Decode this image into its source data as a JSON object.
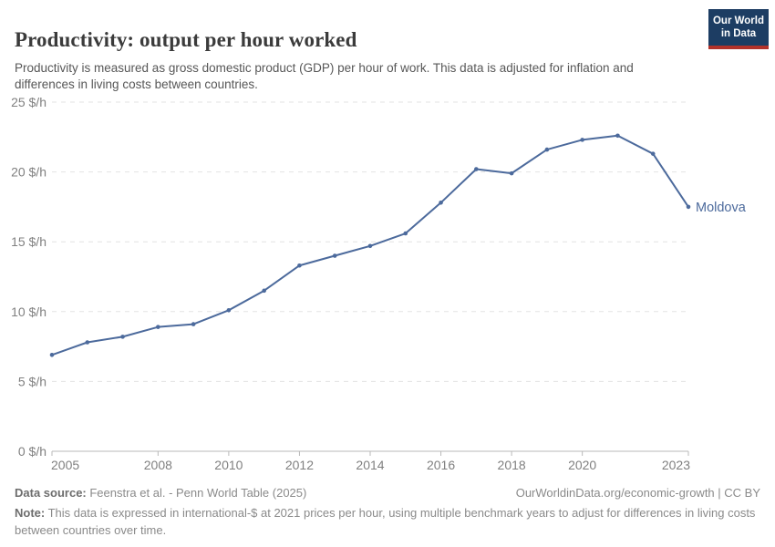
{
  "header": {
    "title": "Productivity: output per hour worked",
    "subtitle": "Productivity is measured as gross domestic product (GDP) per hour of work. This data is adjusted for inflation and differences in living costs between countries.",
    "logo": {
      "line1": "Our World",
      "line2": "in Data"
    }
  },
  "chart_data": {
    "type": "line",
    "title": "Productivity: output per hour worked",
    "series_label": "Moldova",
    "unit": "international-$ per hour",
    "x": [
      2005,
      2006,
      2007,
      2008,
      2009,
      2010,
      2011,
      2012,
      2013,
      2014,
      2015,
      2016,
      2017,
      2018,
      2019,
      2020,
      2021,
      2022,
      2023
    ],
    "values": [
      6.9,
      7.8,
      8.2,
      8.9,
      9.1,
      10.1,
      11.5,
      13.3,
      14.0,
      14.7,
      15.6,
      17.8,
      20.2,
      19.9,
      21.6,
      22.3,
      22.6,
      21.3,
      17.5
    ],
    "xlim": [
      2005,
      2023
    ],
    "ylim": [
      0,
      25
    ],
    "yticks": [
      0,
      5,
      10,
      15,
      20,
      25
    ],
    "ytick_labels": [
      "0 $/h",
      "5 $/h",
      "10 $/h",
      "15 $/h",
      "20 $/h",
      "25 $/h"
    ],
    "xtick_years": [
      2005,
      2008,
      2010,
      2012,
      2014,
      2016,
      2018,
      2020,
      2023
    ],
    "xtick_labels": [
      "2005",
      "2008",
      "2010",
      "2012",
      "2014",
      "2016",
      "2018",
      "2020",
      "2023"
    ],
    "grid": true,
    "legend_position": "end-of-line",
    "line_color": "#4c6a9c",
    "grid_color": "#e3e3e3",
    "axis_color": "#b8b8b8",
    "tick_label_color": "#808080"
  },
  "footer": {
    "datasource_label": "Data source:",
    "datasource_text": " Feenstra et al. - Penn World Table (2025)",
    "link_text": "OurWorldinData.org/economic-growth | CC BY",
    "note_label": "Note:",
    "note_text": " This data is expressed in international-$ at 2021 prices per hour, using multiple benchmark years to adjust for differences in living costs between countries over time."
  }
}
